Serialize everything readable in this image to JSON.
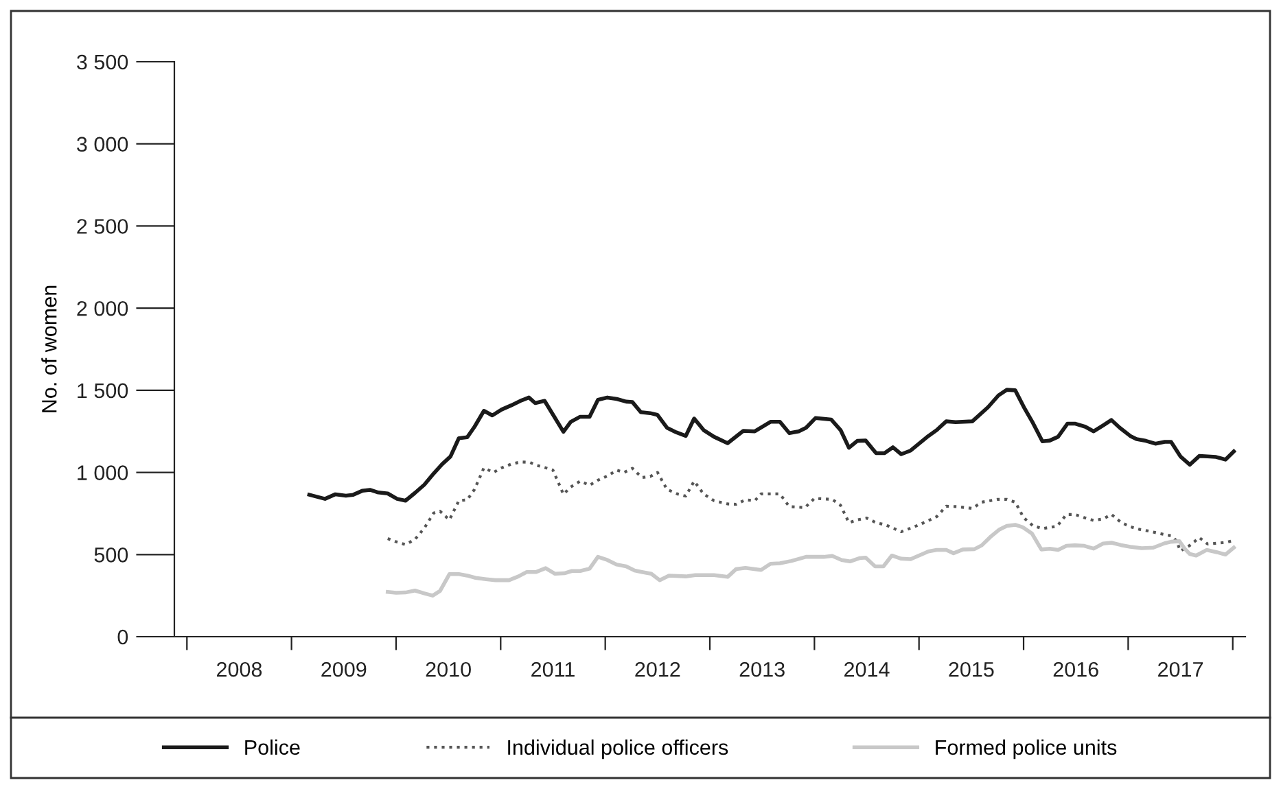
{
  "chart_data": {
    "type": "line",
    "ylabel": "No. of women",
    "xlim": [
      2007.88,
      2018.12
    ],
    "xticks": [
      {
        "value": 2008,
        "label": null
      },
      {
        "value": 2008.5,
        "label": "2008"
      },
      {
        "value": 2009,
        "label": null
      },
      {
        "value": 2009.5,
        "label": "2009"
      },
      {
        "value": 2010,
        "label": null
      },
      {
        "value": 2010.5,
        "label": "2010"
      },
      {
        "value": 2011,
        "label": null
      },
      {
        "value": 2011.5,
        "label": "2011"
      },
      {
        "value": 2012,
        "label": null
      },
      {
        "value": 2012.5,
        "label": "2012"
      },
      {
        "value": 2013,
        "label": null
      },
      {
        "value": 2013.5,
        "label": "2013"
      },
      {
        "value": 2014,
        "label": null
      },
      {
        "value": 2014.5,
        "label": "2014"
      },
      {
        "value": 2015,
        "label": null
      },
      {
        "value": 2015.5,
        "label": "2015"
      },
      {
        "value": 2016,
        "label": null
      },
      {
        "value": 2016.5,
        "label": "2016"
      },
      {
        "value": 2017,
        "label": null
      },
      {
        "value": 2017.5,
        "label": "2017"
      },
      {
        "value": 2018,
        "label": null
      }
    ],
    "ylim": [
      0,
      3500
    ],
    "yticks": [
      0,
      500,
      {
        "value": 1000,
        "label": "1 000"
      },
      {
        "value": 1500,
        "label": "1 500"
      },
      {
        "value": 2000,
        "label": "2 000"
      },
      {
        "value": 2500,
        "label": "2 500"
      },
      {
        "value": 3000,
        "label": "3 000"
      },
      {
        "value": 3500,
        "label": "3 500"
      }
    ],
    "grid": false,
    "legend": "bottom",
    "marker": "none",
    "series": [
      {
        "name": "Police",
        "color": "#1a1a1a",
        "line_style": "solid",
        "x": [
          2009.17,
          2009.32,
          2009.42,
          2009.52,
          2009.59,
          2009.68,
          2009.75,
          2009.83,
          2009.92,
          2010.01,
          2010.09,
          2010.18,
          2010.27,
          2010.36,
          2010.44,
          2010.52,
          2010.6,
          2010.68,
          2010.75,
          2010.84,
          2010.92,
          2011.01,
          2011.1,
          2011.19,
          2011.27,
          2011.33,
          2011.42,
          2011.51,
          2011.6,
          2011.67,
          2011.76,
          2011.85,
          2011.93,
          2012.02,
          2012.11,
          2012.2,
          2012.26,
          2012.34,
          2012.43,
          2012.5,
          2012.59,
          2012.68,
          2012.77,
          2012.85,
          2012.94,
          2013.04,
          2013.17,
          2013.32,
          2013.43,
          2013.58,
          2013.67,
          2013.76,
          2013.85,
          2013.92,
          2014.01,
          2014.16,
          2014.25,
          2014.33,
          2014.41,
          2014.49,
          2014.59,
          2014.67,
          2014.75,
          2014.83,
          2014.92,
          2015.09,
          2015.17,
          2015.26,
          2015.35,
          2015.51,
          2015.66,
          2015.76,
          2015.84,
          2015.92,
          2016.01,
          2016.09,
          2016.18,
          2016.25,
          2016.33,
          2016.42,
          2016.49,
          2016.59,
          2016.67,
          2016.76,
          2016.84,
          2016.92,
          2017.02,
          2017.08,
          2017.17,
          2017.26,
          2017.35,
          2017.41,
          2017.5,
          2017.59,
          2017.68,
          2017.76,
          2017.84,
          2017.93,
          2018.01
        ],
        "values": [
          864,
          839,
          867,
          858,
          864,
          889,
          894,
          878,
          872,
          839,
          828,
          875,
          925,
          994,
          1050,
          1097,
          1208,
          1214,
          1278,
          1375,
          1347,
          1383,
          1408,
          1436,
          1456,
          1422,
          1436,
          1342,
          1247,
          1308,
          1339,
          1339,
          1442,
          1456,
          1447,
          1431,
          1428,
          1367,
          1361,
          1350,
          1272,
          1244,
          1222,
          1328,
          1258,
          1217,
          1178,
          1253,
          1250,
          1308,
          1308,
          1239,
          1250,
          1272,
          1331,
          1322,
          1258,
          1150,
          1192,
          1194,
          1117,
          1117,
          1153,
          1111,
          1133,
          1222,
          1258,
          1311,
          1306,
          1311,
          1397,
          1469,
          1503,
          1500,
          1389,
          1300,
          1189,
          1194,
          1217,
          1297,
          1297,
          1278,
          1250,
          1286,
          1319,
          1272,
          1222,
          1203,
          1192,
          1175,
          1186,
          1186,
          1097,
          1047,
          1100,
          1097,
          1094,
          1078,
          1128
        ]
      },
      {
        "name": "Individual police officers",
        "color": "#555555",
        "line_style": "dotted",
        "x": [
          2009.92,
          2010.0,
          2010.09,
          2010.18,
          2010.27,
          2010.36,
          2010.42,
          2010.51,
          2010.6,
          2010.68,
          2010.75,
          2010.84,
          2010.93,
          2011.01,
          2011.1,
          2011.19,
          2011.28,
          2011.34,
          2011.43,
          2011.5,
          2011.6,
          2011.67,
          2011.76,
          2011.85,
          2011.93,
          2012.02,
          2012.11,
          2012.18,
          2012.26,
          2012.35,
          2012.43,
          2012.5,
          2012.59,
          2012.69,
          2012.77,
          2012.85,
          2012.94,
          2013.04,
          2013.17,
          2013.25,
          2013.34,
          2013.43,
          2013.49,
          2013.67,
          2013.76,
          2013.91,
          2014.0,
          2014.17,
          2014.25,
          2014.33,
          2014.41,
          2014.5,
          2014.59,
          2014.68,
          2014.83,
          2014.92,
          2015.01,
          2015.17,
          2015.26,
          2015.36,
          2015.51,
          2015.6,
          2015.75,
          2015.84,
          2015.92,
          2016.0,
          2016.09,
          2016.18,
          2016.32,
          2016.41,
          2016.49,
          2016.58,
          2016.67,
          2016.76,
          2016.84,
          2016.93,
          2017.02,
          2017.11,
          2017.19,
          2017.28,
          2017.41,
          2017.46,
          2017.5,
          2017.59,
          2017.68,
          2017.76,
          2017.85,
          2017.94,
          2018.01
        ],
        "values": [
          597,
          578,
          561,
          592,
          661,
          753,
          764,
          711,
          828,
          833,
          897,
          1028,
          1000,
          1028,
          1050,
          1064,
          1061,
          1044,
          1028,
          1014,
          867,
          911,
          947,
          922,
          953,
          978,
          1014,
          1000,
          1025,
          969,
          975,
          1000,
          897,
          869,
          856,
          947,
          869,
          828,
          808,
          806,
          833,
          828,
          869,
          869,
          792,
          786,
          842,
          836,
          800,
          694,
          711,
          722,
          694,
          681,
          639,
          661,
          683,
          731,
          794,
          792,
          781,
          819,
          836,
          836,
          819,
          725,
          675,
          658,
          672,
          744,
          744,
          725,
          708,
          717,
          744,
          697,
          669,
          653,
          644,
          631,
          614,
          586,
          522,
          556,
          603,
          564,
          569,
          575,
          586
        ]
      },
      {
        "name": "Formed police units",
        "color": "#c8c8c8",
        "line_style": "solid",
        "x": [
          2009.92,
          2010.0,
          2010.09,
          2010.18,
          2010.27,
          2010.35,
          2010.42,
          2010.51,
          2010.6,
          2010.68,
          2010.76,
          2010.86,
          2010.95,
          2011.08,
          2011.17,
          2011.25,
          2011.34,
          2011.43,
          2011.52,
          2011.61,
          2011.68,
          2011.76,
          2011.85,
          2011.93,
          2012.02,
          2012.11,
          2012.2,
          2012.28,
          2012.35,
          2012.44,
          2012.52,
          2012.61,
          2012.77,
          2012.86,
          2013.04,
          2013.17,
          2013.25,
          2013.34,
          2013.49,
          2013.58,
          2013.67,
          2013.78,
          2013.92,
          2014.09,
          2014.17,
          2014.26,
          2014.34,
          2014.43,
          2014.49,
          2014.58,
          2014.66,
          2014.74,
          2014.83,
          2014.92,
          2015.09,
          2015.17,
          2015.26,
          2015.33,
          2015.42,
          2015.53,
          2015.6,
          2015.68,
          2015.77,
          2015.84,
          2015.92,
          2015.99,
          2016.08,
          2016.17,
          2016.25,
          2016.33,
          2016.41,
          2016.49,
          2016.58,
          2016.67,
          2016.76,
          2016.84,
          2016.93,
          2017.02,
          2017.13,
          2017.24,
          2017.35,
          2017.41,
          2017.49,
          2017.54,
          2017.59,
          2017.65,
          2017.75,
          2017.85,
          2017.93,
          2018.01
        ],
        "values": [
          272,
          267,
          269,
          281,
          264,
          250,
          278,
          381,
          381,
          372,
          358,
          350,
          344,
          344,
          367,
          394,
          394,
          417,
          383,
          386,
          400,
          400,
          414,
          486,
          467,
          439,
          428,
          403,
          394,
          383,
          344,
          372,
          367,
          375,
          375,
          364,
          411,
          419,
          406,
          444,
          447,
          461,
          486,
          486,
          492,
          467,
          458,
          478,
          481,
          428,
          428,
          494,
          475,
          472,
          519,
          528,
          528,
          508,
          531,
          533,
          556,
          606,
          653,
          675,
          681,
          667,
          628,
          531,
          536,
          528,
          553,
          556,
          553,
          536,
          567,
          572,
          558,
          547,
          539,
          542,
          569,
          578,
          581,
          536,
          503,
          494,
          528,
          514,
          500,
          542
        ]
      }
    ]
  }
}
